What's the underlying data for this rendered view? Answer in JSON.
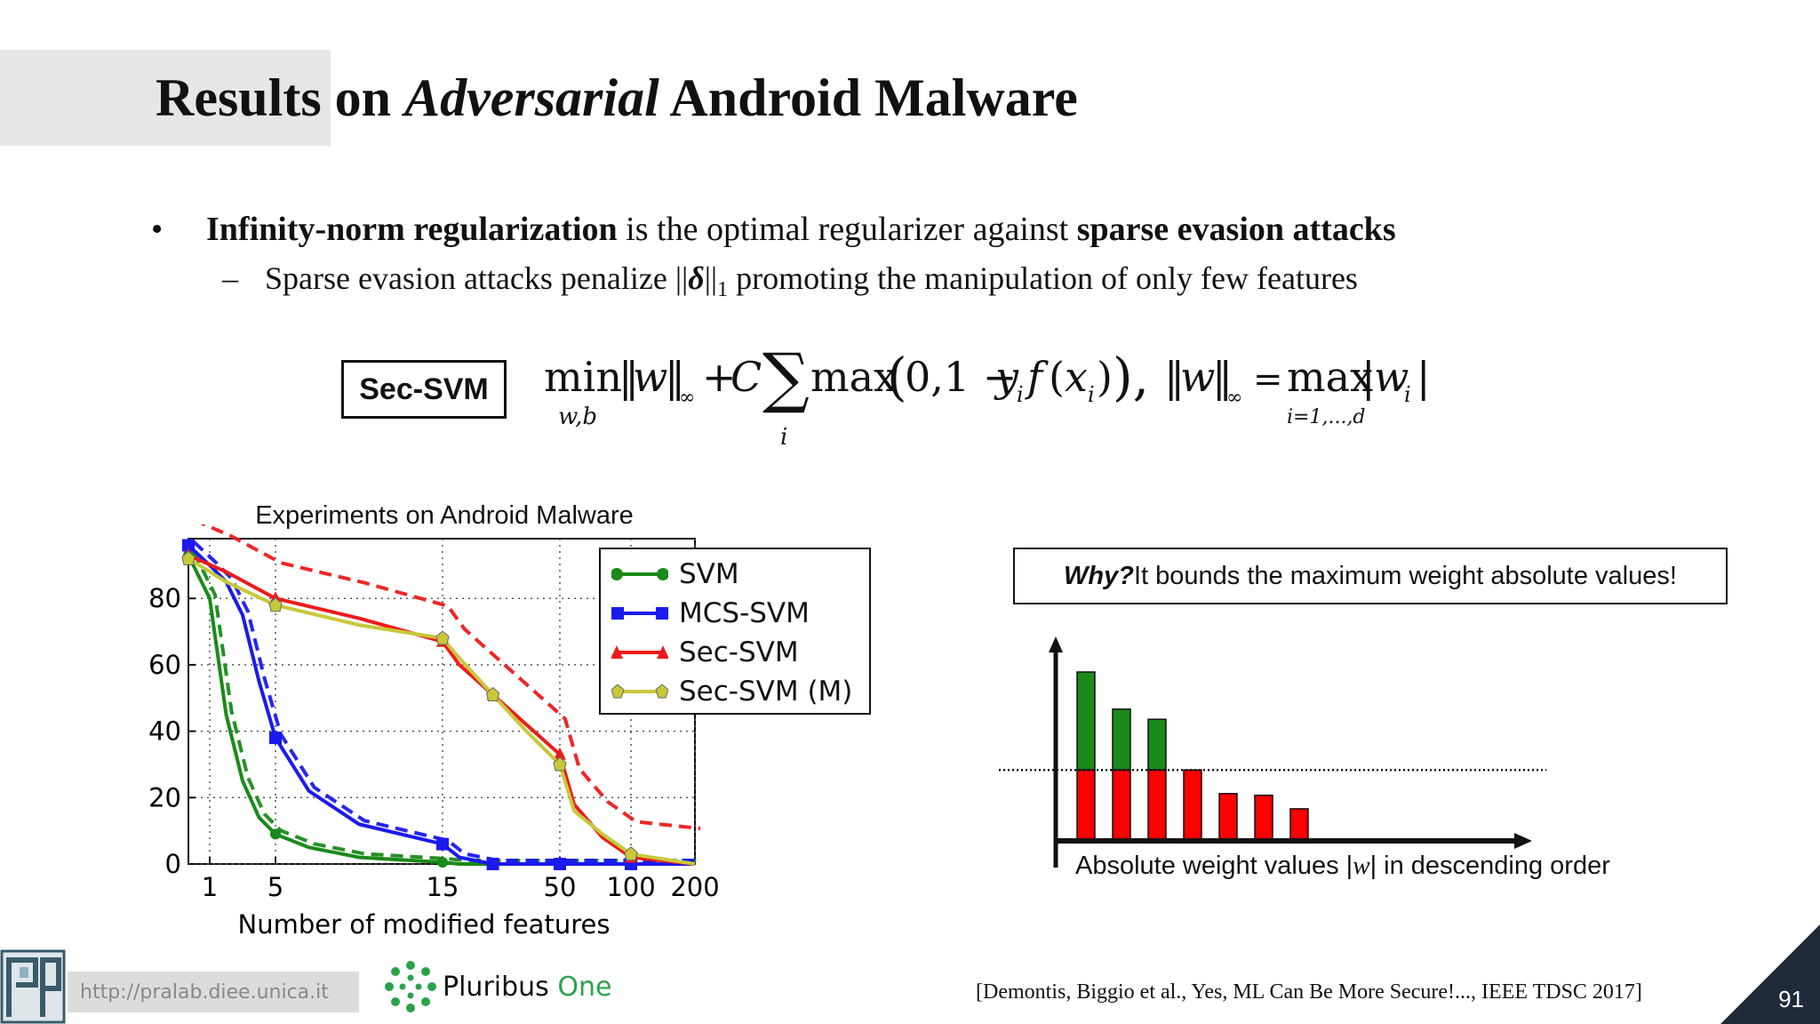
{
  "slide": {
    "title_pre": "Results on ",
    "title_italic": "Adversarial",
    "title_post": " Android Malware",
    "bullet1": {
      "marker": "•",
      "bold1": "Infinity-norm regularization",
      "text1": " is the optimal regularizer against ",
      "bold2": "sparse evasion attacks"
    },
    "bullet2": {
      "marker": "–",
      "text_pre": "Sparse evasion attacks penalize ||",
      "delta": "δ",
      "text_mid": "||",
      "sub": "1",
      "text_post": " promoting the manipulation of only few features"
    },
    "formula_label": "Sec-SVM",
    "why": {
      "bold": "Why?",
      "text": " It bounds the maximum weight absolute values!"
    },
    "bars_caption_pre": "Absolute weight values |",
    "bars_caption_w": "w",
    "bars_caption_post": "| in descending order",
    "url": "http://pralab.diee.unica.it",
    "pluribus_a": "Pluribus ",
    "pluribus_b": "One",
    "citation": "[Demontis, Biggio et al., Yes, ML Can Be More Secure!..., IEEE TDSC 2017]",
    "page_number": "91"
  },
  "colors": {
    "svm": "#1a8a1a",
    "mcs": "#1a1aee",
    "sec": "#ee1a1a",
    "secm": "#c8c83a",
    "bar_green": "#1a8a1a",
    "bar_red": "#ff0000"
  },
  "chart_data": {
    "type": "line",
    "title": "Experiments on Android Malware",
    "xlabel": "Number of modified features",
    "ylabel": "",
    "x_tick_labels": [
      "1",
      "5",
      "15",
      "50",
      "100",
      "200"
    ],
    "y_ticks": [
      0,
      20,
      40,
      60,
      80
    ],
    "ylim": [
      0,
      98
    ],
    "grid": true,
    "legend_position": "top-right",
    "series": [
      {
        "name": "SVM",
        "x": [
          0,
          1,
          2,
          3,
          4,
          5,
          7,
          10,
          15,
          20,
          30,
          50,
          100,
          200
        ],
        "y": [
          93,
          80,
          45,
          25,
          14,
          9,
          5,
          2,
          0.5,
          0,
          0,
          0,
          0,
          0
        ]
      },
      {
        "name": "MCS-SVM",
        "x": [
          0,
          1,
          2,
          3,
          4,
          5,
          7,
          10,
          15,
          20,
          30,
          50,
          100,
          200
        ],
        "y": [
          96,
          90,
          85,
          75,
          55,
          38,
          22,
          12,
          6,
          2,
          0,
          0,
          0,
          0
        ]
      },
      {
        "name": "Sec-SVM",
        "x": [
          0,
          2,
          5,
          10,
          15,
          20,
          30,
          40,
          50,
          60,
          80,
          100,
          200
        ],
        "y": [
          93,
          88,
          80,
          74,
          67,
          60,
          51,
          42,
          33,
          18,
          8,
          2,
          0
        ]
      },
      {
        "name": "Sec-SVM (M)",
        "x": [
          0,
          2,
          5,
          10,
          15,
          20,
          30,
          40,
          50,
          60,
          80,
          100,
          200
        ],
        "y": [
          92,
          85,
          78,
          72,
          68,
          62,
          51,
          40,
          30,
          16,
          9,
          3,
          0
        ]
      }
    ]
  },
  "bars": {
    "threshold": 0.42,
    "values": [
      1.0,
      0.78,
      0.72,
      0.42,
      0.28,
      0.27,
      0.19
    ]
  }
}
